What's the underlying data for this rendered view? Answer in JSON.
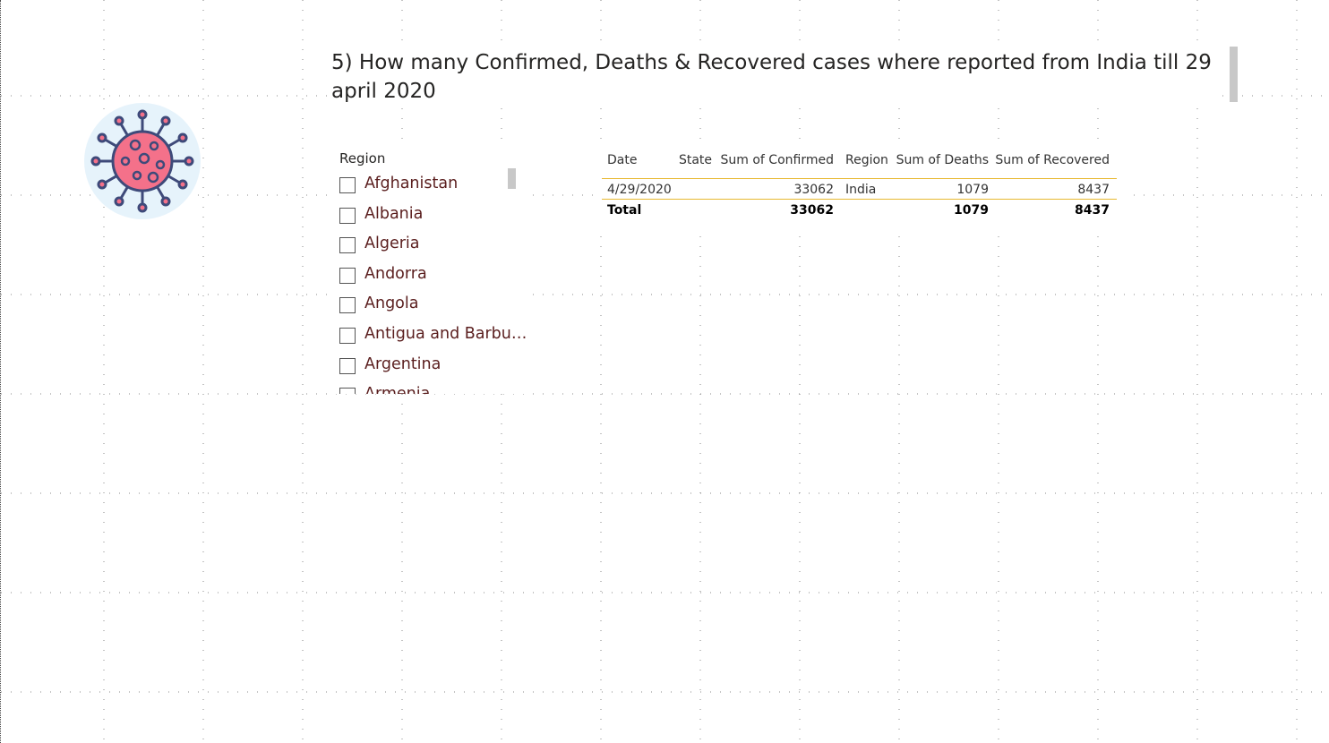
{
  "header": {
    "title": "5) How many Confirmed, Deaths & Recovered cases where reported from India till 29 april 2020"
  },
  "slicer": {
    "title": "Region",
    "items": [
      "Afghanistan",
      "Albania",
      "Algeria",
      "Andorra",
      "Angola",
      "Antigua and Barbu…",
      "Argentina",
      "Armenia"
    ]
  },
  "table": {
    "columns": [
      "Date",
      "State",
      "Sum of Confirmed",
      "Region",
      "Sum of Deaths",
      "Sum of Recovered"
    ],
    "rows": [
      [
        "4/29/2020",
        null,
        33062,
        "India",
        1079,
        8437
      ]
    ],
    "total": [
      "Total",
      null,
      33062,
      null,
      1079,
      8437
    ]
  }
}
